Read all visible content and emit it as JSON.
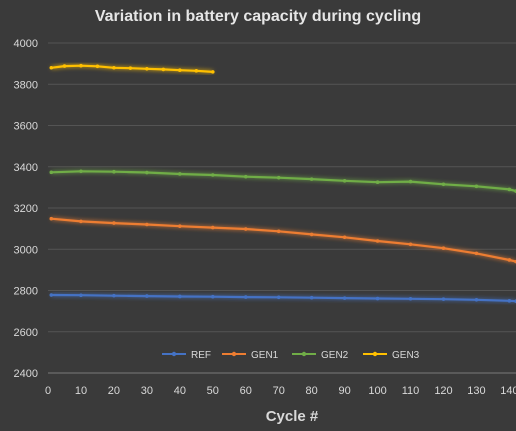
{
  "chart_data": {
    "type": "line",
    "title": "Variation in battery capacity during cycling",
    "xlabel": "Cycle #",
    "ylabel": "",
    "xlim": [
      0,
      142
    ],
    "ylim": [
      2400,
      4000
    ],
    "x_ticks": [
      0,
      10,
      20,
      30,
      40,
      50,
      60,
      70,
      80,
      90,
      100,
      110,
      120,
      130,
      140
    ],
    "y_ticks": [
      2400,
      2600,
      2800,
      3000,
      3200,
      3400,
      3600,
      3800,
      4000
    ],
    "grid": true,
    "legend_position": "bottom",
    "series": [
      {
        "name": "REF",
        "color": "#4472c4",
        "x": [
          1,
          10,
          20,
          30,
          40,
          50,
          60,
          70,
          80,
          90,
          100,
          110,
          120,
          130,
          140,
          142
        ],
        "values": [
          2778,
          2777,
          2775,
          2773,
          2771,
          2770,
          2768,
          2767,
          2765,
          2763,
          2761,
          2760,
          2758,
          2755,
          2750,
          2748
        ]
      },
      {
        "name": "GEN1",
        "color": "#ed7d31",
        "x": [
          1,
          10,
          20,
          30,
          40,
          50,
          60,
          70,
          80,
          90,
          100,
          110,
          120,
          130,
          140,
          142
        ],
        "values": [
          3148,
          3135,
          3127,
          3120,
          3112,
          3105,
          3098,
          3087,
          3072,
          3058,
          3040,
          3024,
          3005,
          2980,
          2948,
          2940
        ]
      },
      {
        "name": "GEN2",
        "color": "#70ad47",
        "x": [
          1,
          10,
          20,
          30,
          40,
          50,
          60,
          70,
          80,
          90,
          100,
          110,
          120,
          130,
          140,
          142
        ],
        "values": [
          3373,
          3378,
          3376,
          3372,
          3365,
          3360,
          3352,
          3347,
          3340,
          3332,
          3325,
          3328,
          3315,
          3305,
          3290,
          3282
        ]
      },
      {
        "name": "GEN3",
        "color": "#ffc000",
        "x": [
          1,
          5,
          10,
          15,
          20,
          25,
          30,
          35,
          40,
          45,
          50
        ],
        "values": [
          3880,
          3888,
          3890,
          3887,
          3880,
          3878,
          3875,
          3872,
          3868,
          3865,
          3860
        ]
      }
    ]
  }
}
